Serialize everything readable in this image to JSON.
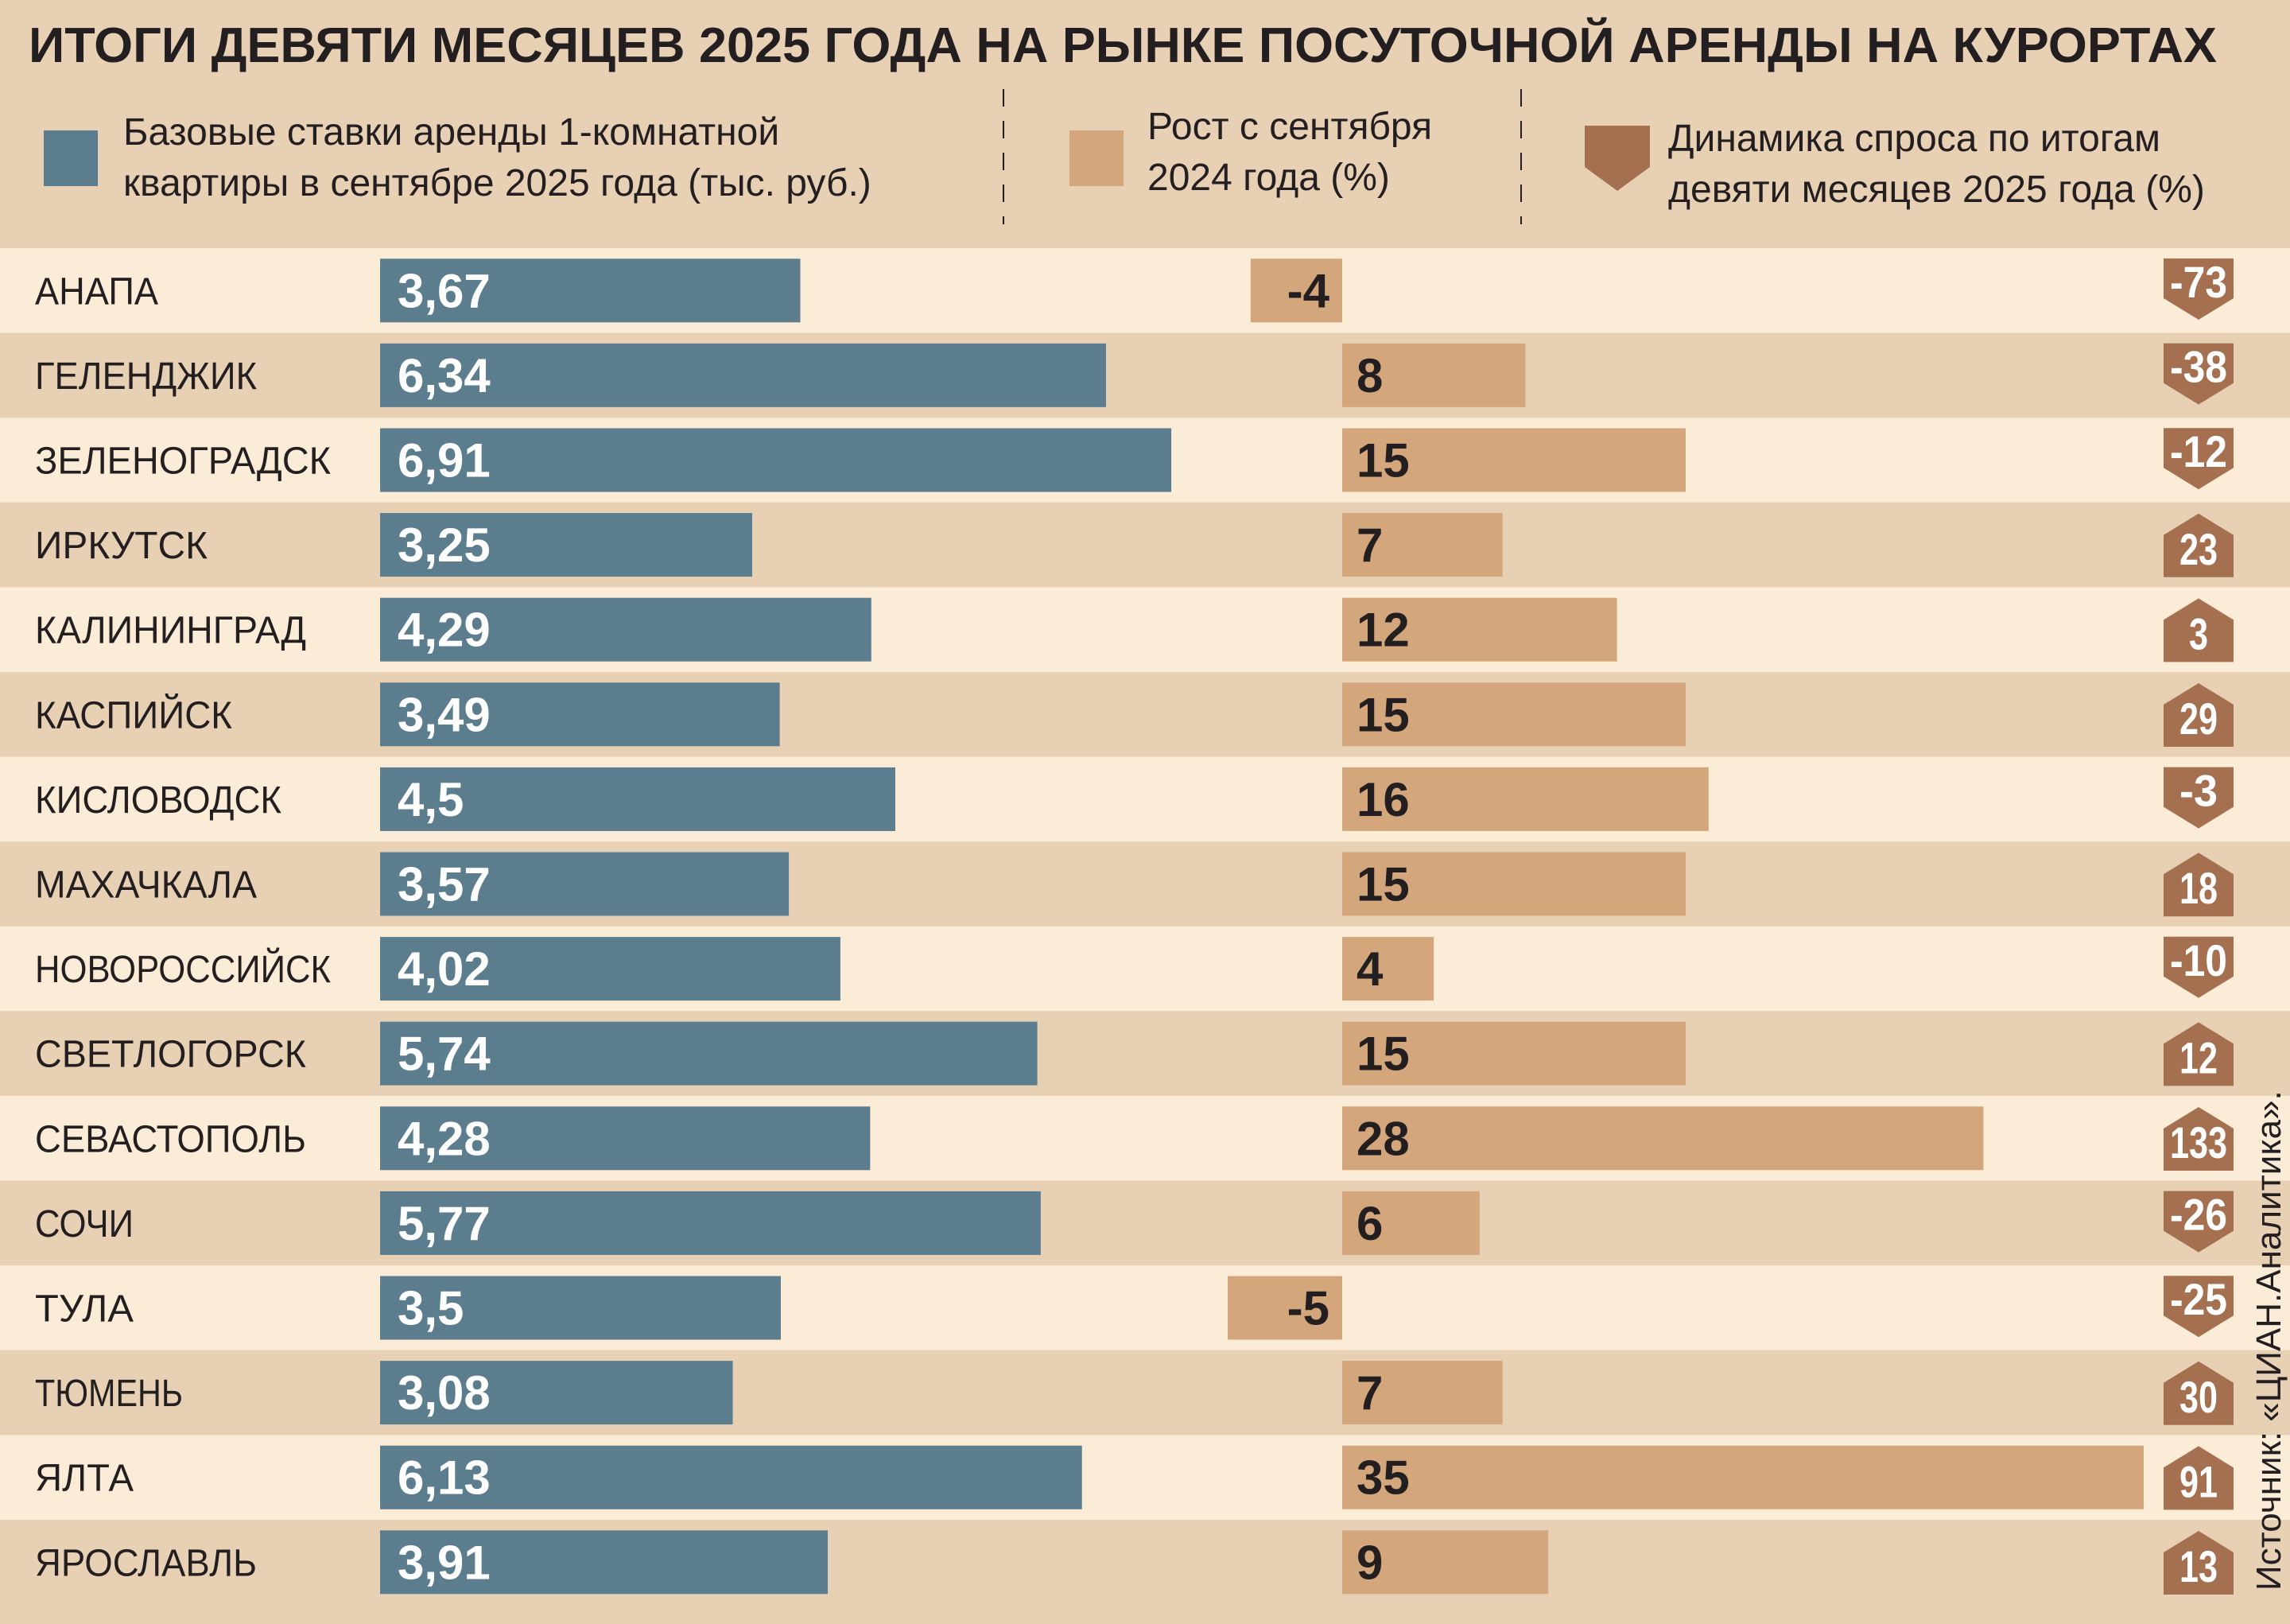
{
  "chart_data": {
    "type": "bar",
    "title": "ИТОГИ ДЕВЯТИ МЕСЯЦЕВ 2025 ГОДА НА РЫНКЕ ПОСУТОЧНОЙ АРЕНДЫ НА КУРОРТАХ",
    "source": "Источник: «ЦИАН.Аналитика».",
    "legend": [
      {
        "lines": [
          "Базовые ставки аренды 1-комнатной",
          "квартиры в сентябре 2025 года (тыс. руб.)"
        ],
        "color": "#5c7d8e",
        "marker": "square"
      },
      {
        "lines": [
          "Рост с сентября",
          "2024 года (%)"
        ],
        "color": "#d4a67b",
        "marker": "square"
      },
      {
        "lines": [
          "Динамика спроса по итогам",
          "девяти месяцев 2025 года (%)"
        ],
        "color": "#a5704f",
        "marker": "arrow"
      }
    ],
    "categories": [
      "АНАПА",
      "ГЕЛЕНДЖИК",
      "ЗЕЛЕНОГРАДСК",
      "ИРКУТСК",
      "КАЛИНИНГРАД",
      "КАСПИЙСК",
      "КИСЛОВОДСК",
      "МАХАЧКАЛА",
      "НОВОРОССИЙСК",
      "СВЕТЛОГОРСК",
      "СЕВАСТОПОЛЬ",
      "СОЧИ",
      "ТУЛА",
      "ТЮМЕНЬ",
      "ЯЛТА",
      "ЯРОСЛАВЛЬ"
    ],
    "series": [
      {
        "name": "Базовые ставки аренды 1-комнатной квартиры в сентябре 2025 года (тыс. руб.)",
        "labels": [
          "3,67",
          "6,34",
          "6,91",
          "3,25",
          "4,29",
          "3,49",
          "4,5",
          "3,57",
          "4,02",
          "5,74",
          "4,28",
          "5,77",
          "3,5",
          "3,08",
          "6,13",
          "3,91"
        ],
        "values": [
          3.67,
          6.34,
          6.91,
          3.25,
          4.29,
          3.49,
          4.5,
          3.57,
          4.02,
          5.74,
          4.28,
          5.77,
          3.5,
          3.08,
          6.13,
          3.91
        ]
      },
      {
        "name": "Рост с сентября 2024 года (%)",
        "values": [
          -4,
          8,
          15,
          7,
          12,
          15,
          16,
          15,
          4,
          15,
          28,
          6,
          -5,
          7,
          35,
          9
        ]
      },
      {
        "name": "Динамика спроса по итогам девяти месяцев 2025 года (%)",
        "values": [
          -73,
          -38,
          -12,
          23,
          3,
          29,
          -3,
          18,
          -10,
          12,
          133,
          -26,
          -25,
          30,
          91,
          13
        ]
      }
    ],
    "colors": {
      "header_bg": "#e8d0b4",
      "row_light": "#fbecd7",
      "row_dark": "#e8d0b4",
      "rate": "#5c7d8e",
      "growth": "#d4a67b",
      "demand": "#a5704f",
      "text": "#231f20"
    }
  }
}
